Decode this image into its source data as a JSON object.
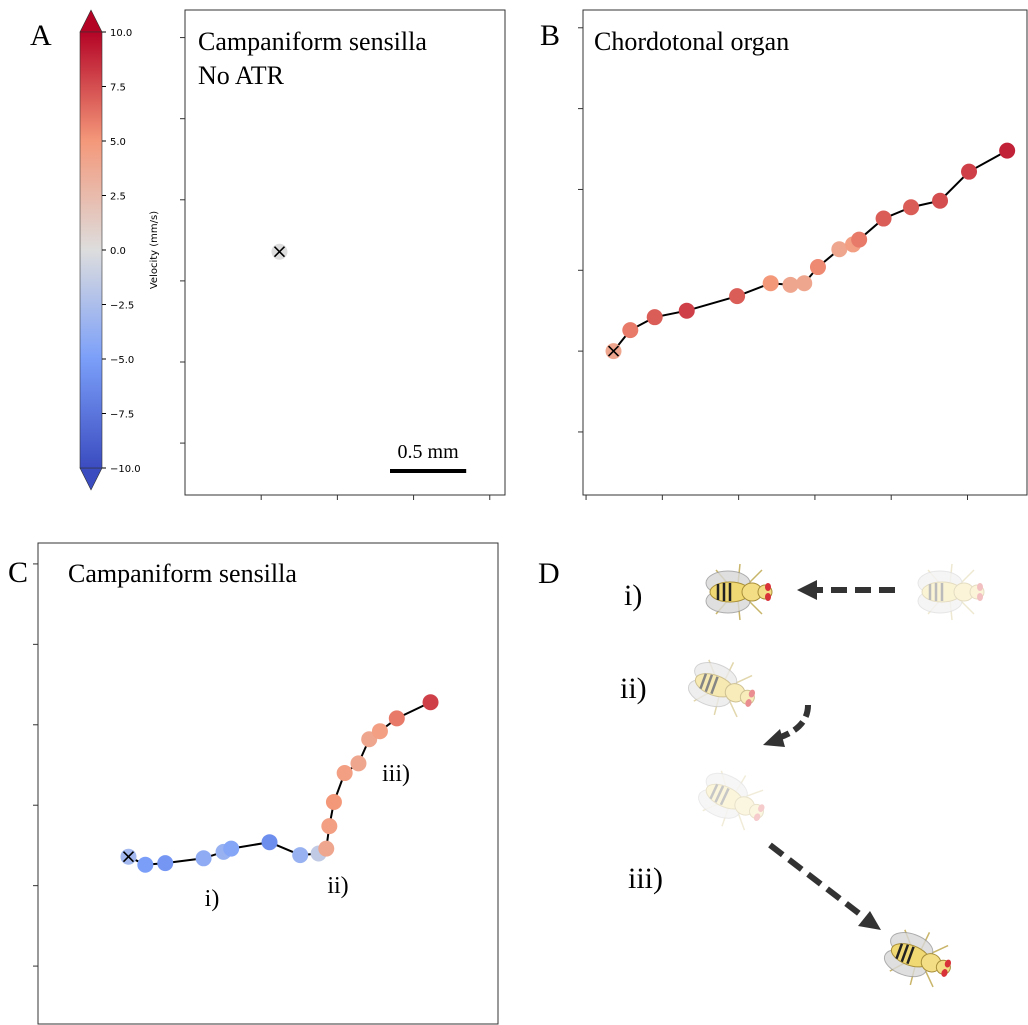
{
  "chart_data": [
    {
      "type": "colorbar",
      "label": "Velocity (mm/s)",
      "lim": [
        -10,
        10
      ],
      "ticks": [
        {
          "value": 10,
          "label": "10.0"
        },
        7.5,
        {
          "value": 5,
          "label": "5.0"
        },
        2.5,
        {
          "value": 0,
          "label": "0.0"
        },
        {
          "value": -2.5,
          "label": "−2.5"
        },
        {
          "value": -5,
          "label": "−5.0"
        },
        {
          "value": -7.5,
          "label": "−7.5"
        },
        {
          "value": -10,
          "label": "−10.0"
        }
      ],
      "colormap": [
        "#3b4cc0",
        "#7b9ff9",
        "#dddddd",
        "#f4987a",
        "#b40426"
      ]
    },
    {
      "type": "trajectory",
      "panel": "A",
      "title": [
        "Campaniform sensilla",
        "No ATR"
      ],
      "x": [
        0.62
      ],
      "y": [
        1.18
      ],
      "velocity": [
        0
      ],
      "xlim": [
        0,
        2.1
      ],
      "ylim": [
        -0.32,
        2.67
      ],
      "xticks": [
        0.5,
        1,
        1.5,
        2
      ],
      "yticks": [
        0,
        0.5,
        1,
        1.5,
        2,
        2.5
      ],
      "scalebar": {
        "label": "0.5 mm",
        "length": 0.5
      }
    },
    {
      "type": "trajectory",
      "panel": "B",
      "title": [
        "Chordotonal organ"
      ],
      "x": [
        0.18,
        0.29,
        0.45,
        0.66,
        0.99,
        1.21,
        1.34,
        1.43,
        1.52,
        1.66,
        1.75,
        1.79,
        1.95,
        2.13,
        2.32,
        2.51,
        2.76
      ],
      "y": [
        0.5,
        0.63,
        0.71,
        0.75,
        0.84,
        0.92,
        0.91,
        0.92,
        1.02,
        1.13,
        1.16,
        1.19,
        1.32,
        1.39,
        1.43,
        1.61,
        1.74
      ],
      "velocity": [
        4,
        6,
        7,
        8,
        7,
        5,
        4,
        4,
        5.5,
        4,
        4.5,
        6,
        7,
        7,
        7.5,
        8,
        9
      ],
      "xlim": [
        -0.02,
        2.89
      ],
      "ylim": [
        -0.39,
        2.61
      ],
      "xticks": [
        0,
        0.5,
        1,
        1.5,
        2,
        2.5
      ],
      "yticks": [
        0,
        0.5,
        1,
        1.5,
        2,
        2.5
      ]
    },
    {
      "type": "trajectory",
      "panel": "C",
      "title": [
        "Campaniform sensilla"
      ],
      "x": [
        0.59,
        0.7,
        0.83,
        1.08,
        1.21,
        1.26,
        1.51,
        1.71,
        1.83,
        1.88,
        1.9,
        1.93,
        2.0,
        2.09,
        2.16,
        2.23,
        2.34,
        2.56
      ],
      "y": [
        0.18,
        0.13,
        0.14,
        0.17,
        0.21,
        0.23,
        0.27,
        0.19,
        0.2,
        0.23,
        0.37,
        0.52,
        0.7,
        0.76,
        0.91,
        0.96,
        1.04,
        1.14
      ],
      "velocity": [
        -3,
        -5,
        -5.5,
        -4,
        -3.5,
        -4.5,
        -6,
        -3.5,
        -1.5,
        4,
        4.5,
        5,
        4.5,
        4,
        4,
        4.5,
        6,
        8
      ],
      "xlim": [
        0,
        3.0
      ],
      "ylim": [
        -0.86,
        2.13
      ],
      "yticks": [
        -0.5,
        0,
        0.5,
        1,
        1.5,
        2
      ],
      "annotations": [
        "i)",
        "ii)",
        "iii)"
      ]
    }
  ],
  "panel_d": {
    "label": "D",
    "steps": [
      "i)",
      "ii)",
      "iii)"
    ]
  }
}
